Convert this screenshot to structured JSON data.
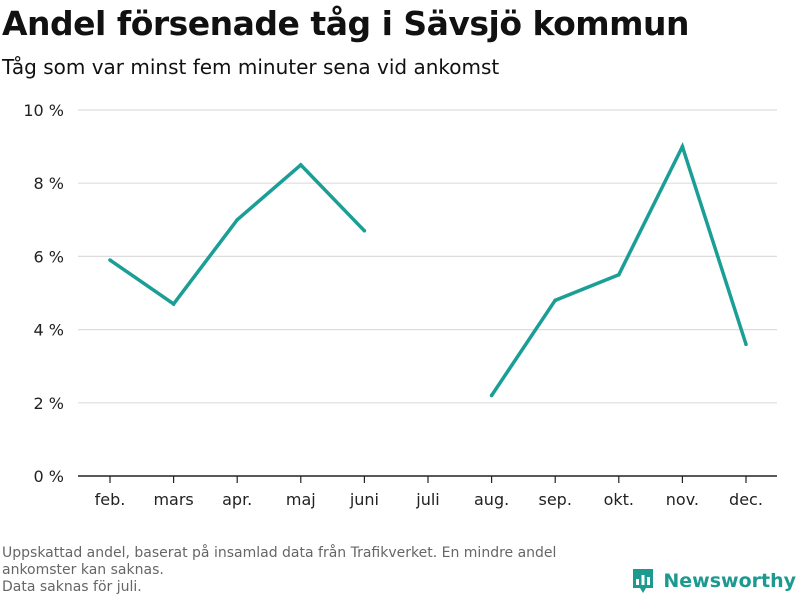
{
  "title": "Andel försenade tåg i Sävsjö kommun",
  "subtitle": "Tåg som var minst fem minuter sena vid ankomst",
  "footnote": {
    "line1": "Uppskattad andel, baserat på insamlad data från Trafikverket. En mindre andel",
    "line2": "ankomster kan saknas.",
    "line3": "Data saknas för juli."
  },
  "brand": {
    "name": "Newsworthy",
    "icon": "newsworthy-logo-icon"
  },
  "colors": {
    "line": "#1a9e96",
    "grid": "#dddddd",
    "axis": "#222222",
    "brand": "#1d9a8f"
  },
  "chart_data": {
    "type": "line",
    "categories": [
      "feb.",
      "mars",
      "apr.",
      "maj",
      "juni",
      "juli",
      "aug.",
      "sep.",
      "okt.",
      "nov.",
      "dec."
    ],
    "series": [
      {
        "values": [
          5.9,
          4.7,
          7.0,
          8.5,
          6.7,
          null,
          2.2,
          4.8,
          5.5,
          9.0,
          3.6
        ]
      }
    ],
    "y_ticks": [
      "0 %",
      "2 %",
      "4 %",
      "6 %",
      "8 %",
      "10 %"
    ],
    "ylim": [
      0,
      10
    ],
    "grid": true,
    "xlabel": "",
    "ylabel": ""
  }
}
